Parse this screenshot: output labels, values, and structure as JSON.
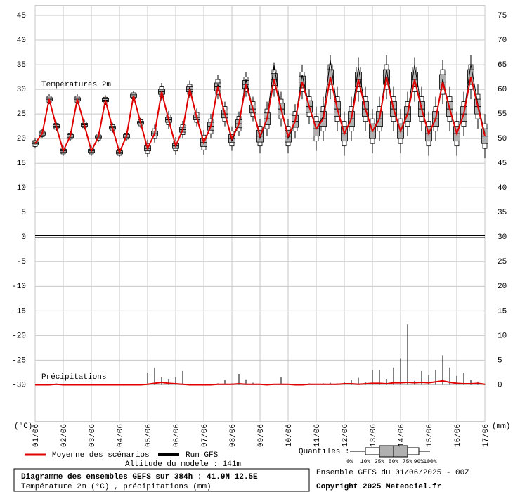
{
  "chart_data": {
    "type": "box",
    "title": "Diagramme des ensembles GEFS sur 384h : 41.9N 12.5E",
    "subtitle": "Température 2m (°C) , précipitations (mm)",
    "annotations": {
      "temp": "Températures 2m",
      "precip": "Précipitations",
      "altitude": "Altitude du modele : 141m",
      "run": "Ensemble GEFS du 01/06/2025 - 00Z",
      "copyright": "Copyright 2025 Meteociel.fr",
      "quantiles_title": "Quantiles :"
    },
    "quantile_labels": [
      "0%",
      "10%",
      "25%",
      "50%",
      "75%",
      "90%",
      "100%"
    ],
    "ylabel": "(°C)",
    "y2label": "(mm)",
    "categories": [
      "01/06",
      "02/06",
      "03/06",
      "04/06",
      "05/06",
      "06/06",
      "07/06",
      "08/06",
      "09/06",
      "10/06",
      "11/06",
      "12/06",
      "13/06",
      "14/06",
      "15/06",
      "16/06",
      "17/06"
    ],
    "ylim": [
      -37.5,
      47
    ],
    "yticks": [
      45,
      40,
      35,
      30,
      25,
      20,
      15,
      10,
      5,
      0,
      -5,
      -10,
      -15,
      -20,
      -25,
      -30
    ],
    "y2lim": [
      -7.5,
      77
    ],
    "y2ticks": [
      75,
      70,
      65,
      60,
      55,
      50,
      45,
      40,
      35,
      30,
      25,
      20,
      15,
      10,
      5,
      0
    ],
    "grid": true,
    "box_color": "#b0b0b0",
    "boxes": {
      "min": [
        18,
        20,
        27,
        21.5,
        16.5,
        19.5,
        27,
        21.8,
        16.5,
        19.3,
        26.8,
        21.2,
        16.2,
        19.5,
        27.7,
        22.2,
        16.2,
        19.2,
        27.7,
        22,
        16.7,
        20,
        28.2,
        22.5,
        16.7,
        20,
        28,
        22.5,
        17.5,
        20.5,
        28.5,
        23.5,
        17,
        20.5,
        28.5,
        22.5,
        17,
        20,
        28,
        23,
        17.5,
        19.5,
        28,
        21.5,
        16.5,
        19.5,
        27.5,
        21.5,
        17,
        19.5,
        28,
        21.5,
        17,
        20.5,
        27.5,
        21.5,
        16.5,
        19.5,
        27,
        21.5,
        16.5,
        20.5,
        28,
        22,
        16
      ],
      "q10": [
        18.4,
        20.4,
        27.4,
        21.9,
        16.9,
        19.9,
        27.4,
        22.2,
        16.9,
        19.7,
        27.2,
        21.6,
        16.6,
        19.9,
        28.1,
        22.6,
        17,
        20,
        28.5,
        22.8,
        17.5,
        20.8,
        29,
        23.3,
        17.7,
        21,
        29,
        23.5,
        18.5,
        21.5,
        29.5,
        24.5,
        18.5,
        22,
        30,
        24,
        18.5,
        21.5,
        29.5,
        24.5,
        19.5,
        21.5,
        30,
        23.5,
        18.5,
        21.5,
        29.5,
        23.5,
        19,
        21.5,
        30,
        23.5,
        19,
        22.5,
        29.5,
        23.5,
        18.5,
        21.5,
        29,
        23.5,
        18.5,
        22.5,
        30,
        24,
        18
      ],
      "q25": [
        18.7,
        20.7,
        27.7,
        22.2,
        17.2,
        20.2,
        27.7,
        22.5,
        17.2,
        20,
        27.5,
        21.9,
        16.9,
        20.2,
        28.4,
        22.9,
        17.5,
        20.5,
        29,
        23.3,
        18,
        21.3,
        29.5,
        23.8,
        18.4,
        21.7,
        29.7,
        24.2,
        19.2,
        22.2,
        30.2,
        25.2,
        19.3,
        22.8,
        30.8,
        24.8,
        19.3,
        22.3,
        30.3,
        25.3,
        20.5,
        22.5,
        31,
        24.5,
        19.5,
        22.5,
        30.5,
        24.5,
        20,
        22.5,
        31,
        24.5,
        20,
        23.5,
        30.5,
        24.5,
        19.5,
        22.5,
        30,
        24.5,
        19.5,
        23.5,
        31,
        25,
        19
      ],
      "q50": [
        19,
        21,
        28,
        22.5,
        17.5,
        20.5,
        28,
        22.8,
        17.5,
        20.3,
        27.8,
        22.2,
        17.2,
        20.5,
        28.7,
        23.2,
        18,
        21,
        29.5,
        23.8,
        18.5,
        21.8,
        30,
        24.3,
        19.2,
        22.5,
        30.5,
        25,
        20,
        23,
        31,
        26,
        20.5,
        24,
        32,
        26,
        20.5,
        23.5,
        31.5,
        26.5,
        22,
        24,
        32.5,
        26,
        21,
        24,
        32,
        26,
        21.5,
        24,
        32.5,
        26,
        21.5,
        25,
        32,
        26,
        21,
        24,
        31.5,
        26,
        21,
        25,
        32.5,
        26.5,
        20.5
      ],
      "q75": [
        19.3,
        21.3,
        28.3,
        22.8,
        17.8,
        20.8,
        28.3,
        23.1,
        17.8,
        20.6,
        28.1,
        22.5,
        17.5,
        20.8,
        29,
        23.5,
        18.5,
        21.5,
        30,
        24.3,
        19,
        22.3,
        30.5,
        24.8,
        20,
        23.3,
        31.3,
        25.8,
        20.8,
        23.8,
        31.8,
        26.8,
        21.7,
        25.2,
        33.2,
        27.2,
        21.7,
        24.7,
        32.7,
        27.7,
        23.5,
        25.5,
        34,
        27.5,
        22.5,
        25.5,
        33.5,
        27.5,
        23,
        25.5,
        34,
        27.5,
        23,
        26.5,
        33.5,
        27.5,
        22.5,
        25.5,
        33,
        27.5,
        22.5,
        26.5,
        34,
        28,
        22
      ],
      "q90": [
        19.6,
        21.6,
        28.6,
        23.1,
        18.1,
        21.1,
        28.6,
        23.4,
        18.1,
        20.9,
        28.4,
        22.8,
        17.8,
        21.1,
        29.3,
        23.8,
        19,
        22,
        30.5,
        24.8,
        19.5,
        22.8,
        31,
        25.3,
        20.7,
        24,
        32,
        26.5,
        21.5,
        24.5,
        32.5,
        27.5,
        22.5,
        26,
        34,
        28,
        22.5,
        25.5,
        33.5,
        28.5,
        24.5,
        26.5,
        35,
        28.5,
        23.5,
        26.5,
        34.5,
        28.5,
        24,
        26.5,
        35,
        28.5,
        24,
        27.5,
        34.5,
        28.5,
        23.5,
        26.5,
        34,
        28.5,
        23.5,
        27.5,
        35,
        29,
        23
      ],
      "max": [
        20,
        22,
        29,
        23.5,
        18.5,
        21.5,
        29,
        23.8,
        18.5,
        21.3,
        28.8,
        23.2,
        18.2,
        21.5,
        29.7,
        24.2,
        19.8,
        22.8,
        31.3,
        25.6,
        20.3,
        23.6,
        31.8,
        26.1,
        21.7,
        25,
        33,
        27.5,
        22.5,
        25.5,
        33.5,
        28.5,
        24,
        27.5,
        35.5,
        29.5,
        24,
        27,
        35,
        30,
        26.5,
        28.5,
        37,
        30.5,
        25.5,
        28.5,
        36.5,
        30.5,
        26,
        28.5,
        37,
        30.5,
        26,
        29.5,
        36.5,
        30.5,
        25.5,
        28.5,
        36,
        30.5,
        25.5,
        29.5,
        37,
        31,
        25
      ]
    },
    "series": [
      {
        "name": "Moyenne des scénarios",
        "color": "#e00000",
        "values": [
          19,
          21,
          28,
          22.5,
          17.5,
          20.5,
          28,
          22.8,
          17.5,
          20.3,
          27.8,
          22.2,
          17.2,
          20.5,
          28.7,
          23.2,
          18,
          21,
          29.5,
          23.8,
          18.5,
          21.8,
          30,
          24.3,
          19.2,
          22.5,
          30.5,
          25,
          20,
          23,
          31,
          26,
          20.5,
          24,
          32,
          26,
          20.5,
          23.5,
          31.5,
          26.5,
          22,
          24,
          32.5,
          26,
          21,
          24,
          32,
          26,
          21.5,
          24,
          32.5,
          26,
          21.5,
          25,
          32,
          26,
          21,
          24,
          31.5,
          26,
          21,
          25,
          32.5,
          26.5,
          20.5
        ]
      },
      {
        "name": "Run GFS",
        "color": "#000000",
        "values": [
          19,
          21,
          28,
          22.5,
          17.5,
          20.5,
          28,
          22.8,
          17.5,
          20.3,
          27.8,
          22.2,
          17.2,
          20.5,
          28.7,
          23.2,
          18,
          21,
          29.5,
          23.8,
          18.5,
          21.8,
          30.5,
          24.3,
          19.2,
          22.5,
          31,
          25,
          19.5,
          23,
          32,
          26,
          20,
          24,
          35,
          26,
          20,
          23.5,
          33,
          26.5,
          22,
          24.5,
          36,
          26,
          21,
          24,
          34.5,
          26,
          21.5,
          24,
          34,
          26,
          21.5,
          25,
          35,
          26,
          21,
          24,
          32,
          26,
          21,
          25,
          35,
          27,
          21
        ]
      }
    ],
    "precipitation": {
      "axis": "y2",
      "color": "#e00000",
      "mean": [
        0,
        0,
        0,
        0.1,
        0,
        0,
        0,
        0,
        0,
        0,
        0,
        0,
        0,
        0,
        0,
        0,
        0.1,
        0.3,
        0.5,
        0.3,
        0.2,
        0.1,
        0,
        0,
        0,
        0,
        0.1,
        0.1,
        0.1,
        0.2,
        0.1,
        0.1,
        0.1,
        0,
        0.1,
        0.1,
        0.1,
        0,
        0,
        0.1,
        0.1,
        0.1,
        0.1,
        0.1,
        0.2,
        0.2,
        0.1,
        0.2,
        0.3,
        0.3,
        0.2,
        0.4,
        0.4,
        0.5,
        0.4,
        0.5,
        0.4,
        0.6,
        0.8,
        0.5,
        0.3,
        0.2,
        0.2,
        0.3,
        0.1
      ],
      "max": [
        0,
        0,
        0,
        0.3,
        0,
        0,
        0,
        0,
        0,
        0,
        0,
        0,
        0,
        0,
        0,
        0,
        2.5,
        3.5,
        1.5,
        1.2,
        1.5,
        2.8,
        0.2,
        0.1,
        0.2,
        0.1,
        0.3,
        1,
        0.3,
        2.2,
        1.1,
        0.4,
        0.2,
        0,
        0.1,
        1.6,
        0.2,
        0.1,
        0.1,
        0.3,
        0.2,
        0.3,
        0.4,
        0.3,
        0.5,
        1,
        1.4,
        0.5,
        3,
        3,
        1.2,
        3.5,
        5.3,
        12.3,
        0.8,
        2.8,
        2,
        3,
        6,
        3.5,
        1.8,
        2.5,
        1,
        0.6,
        0.2
      ]
    }
  }
}
